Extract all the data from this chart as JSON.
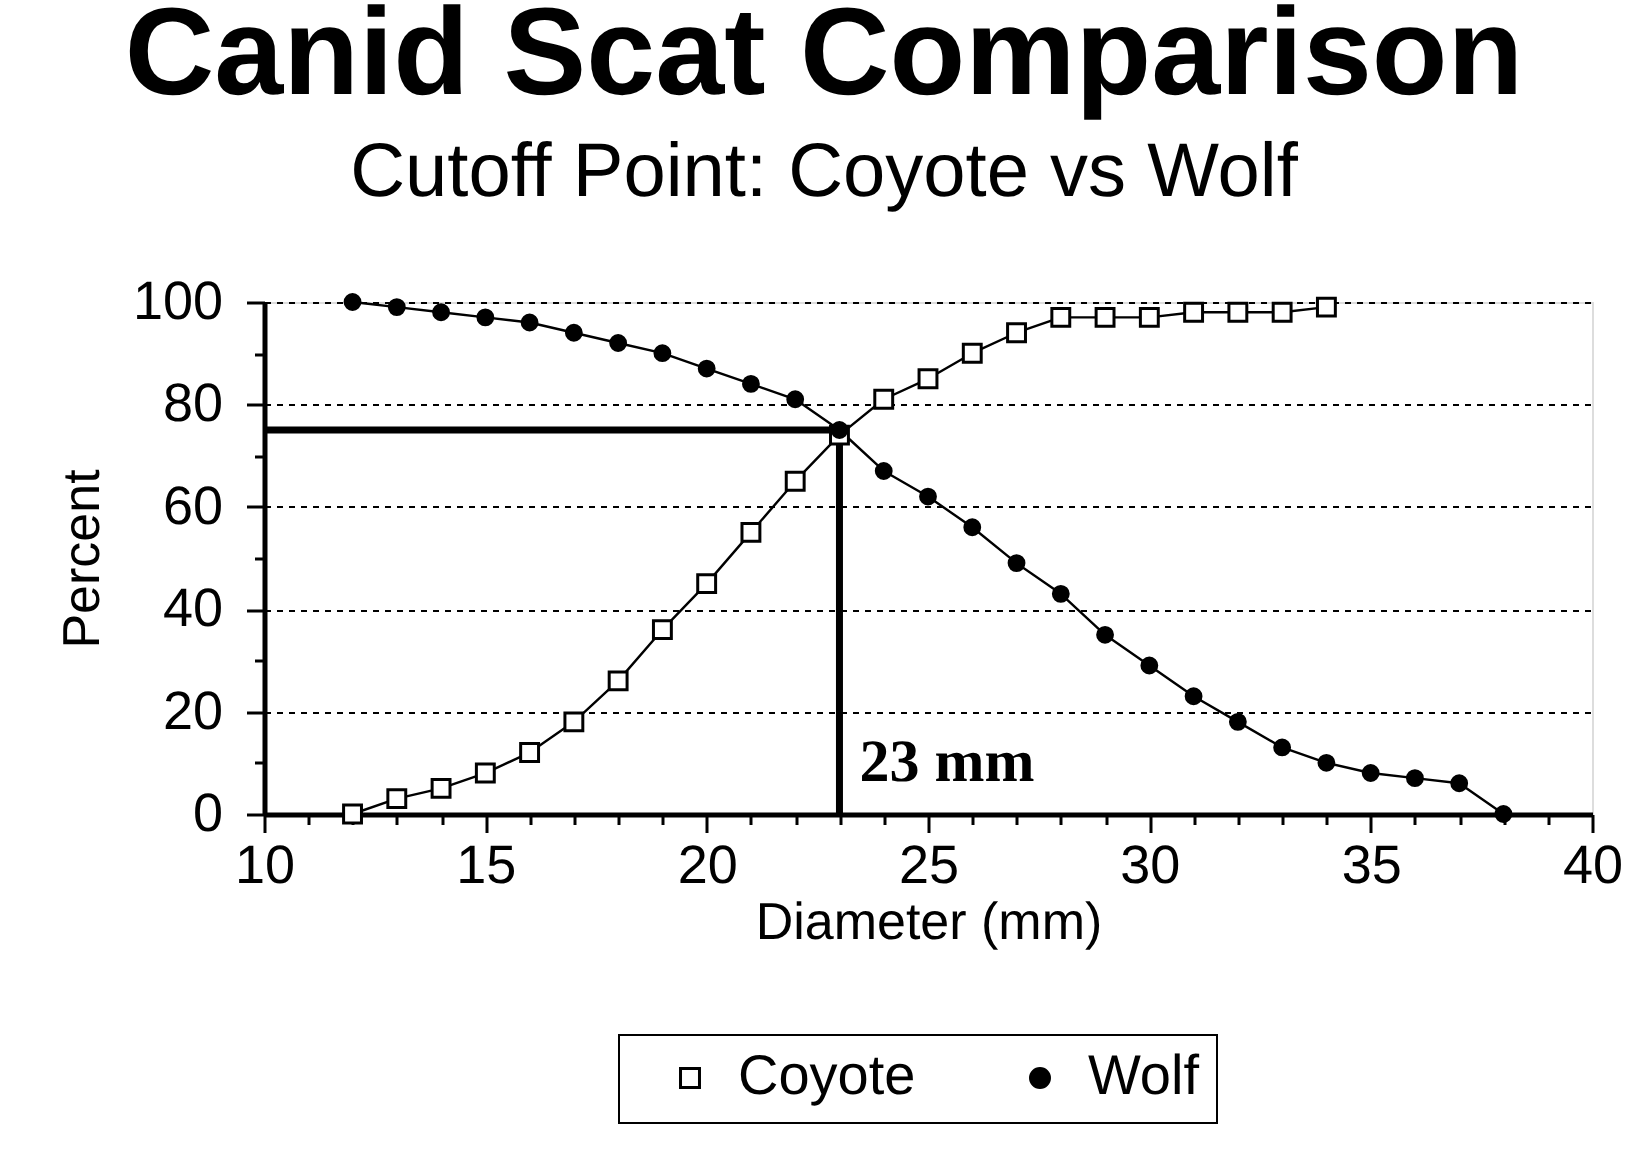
{
  "chart_data": {
    "type": "line",
    "title": "Canid Scat Comparison",
    "subtitle": "Cutoff Point: Coyote vs Wolf",
    "xlabel": "Diameter (mm)",
    "ylabel": "Percent",
    "series": [
      {
        "name": "Coyote",
        "color": "#000000",
        "marker": "square",
        "x": [
          12,
          13,
          14,
          15,
          16,
          17,
          18,
          19,
          20,
          21,
          22,
          23,
          24,
          25,
          26,
          27,
          28,
          29,
          30,
          31,
          32,
          33,
          34
        ],
        "values": [
          0,
          3,
          5,
          8,
          12,
          18,
          26,
          36,
          45,
          55,
          65,
          74,
          81,
          85,
          90,
          94,
          97,
          97,
          97,
          98,
          98,
          98,
          99
        ]
      },
      {
        "name": "Wolf",
        "color": "#000000",
        "marker": "circle",
        "x": [
          12,
          13,
          14,
          15,
          16,
          17,
          18,
          19,
          20,
          21,
          22,
          23,
          24,
          25,
          26,
          27,
          28,
          29,
          30,
          31,
          32,
          33,
          34,
          35,
          36,
          37,
          38
        ],
        "values": [
          100,
          99,
          98,
          97,
          96,
          94,
          92,
          90,
          87,
          84,
          81,
          75,
          67,
          62,
          56,
          49,
          43,
          35,
          29,
          23,
          18,
          13,
          10,
          8,
          7,
          6,
          0
        ]
      },
      {
        "type": "line",
        "color": "#000000",
        "marker": "none",
        "x": [
          10,
          23,
          23
        ],
        "values": [
          75,
          75,
          0
        ]
      }
    ],
    "annotations": [
      {
        "text": "23 mm",
        "x": 23,
        "y": 10
      }
    ],
    "xlim": [
      10,
      40
    ],
    "xticks": [
      10,
      {
        "value": 11,
        "label": null
      },
      {
        "value": 12,
        "label": null
      },
      {
        "value": 13,
        "label": null
      },
      {
        "value": 14,
        "label": null
      },
      15,
      {
        "value": 16,
        "label": null
      },
      {
        "value": 17,
        "label": null
      },
      {
        "value": 18,
        "label": null
      },
      {
        "value": 19,
        "label": null
      },
      20,
      {
        "value": 21,
        "label": null
      },
      {
        "value": 22,
        "label": null
      },
      {
        "value": 23,
        "label": null
      },
      {
        "value": 24,
        "label": null
      },
      25,
      {
        "value": 26,
        "label": null
      },
      {
        "value": 27,
        "label": null
      },
      {
        "value": 28,
        "label": null
      },
      {
        "value": 29,
        "label": null
      },
      30,
      {
        "value": 31,
        "label": null
      },
      {
        "value": 32,
        "label": null
      },
      {
        "value": 33,
        "label": null
      },
      {
        "value": 34,
        "label": null
      },
      35,
      {
        "value": 36,
        "label": null
      },
      {
        "value": 37,
        "label": null
      },
      {
        "value": 38,
        "label": null
      },
      {
        "value": 39,
        "label": null
      },
      40
    ],
    "ylim": [
      0,
      100
    ],
    "yticks": [
      0,
      {
        "value": 10,
        "label": null
      },
      20,
      {
        "value": 30,
        "label": null
      },
      40,
      {
        "value": 50,
        "label": null
      },
      60,
      {
        "value": 70,
        "label": null
      },
      80,
      {
        "value": 90,
        "label": null
      },
      100
    ],
    "grid": "y",
    "legend": "bottom",
    "line_style": "solid"
  }
}
